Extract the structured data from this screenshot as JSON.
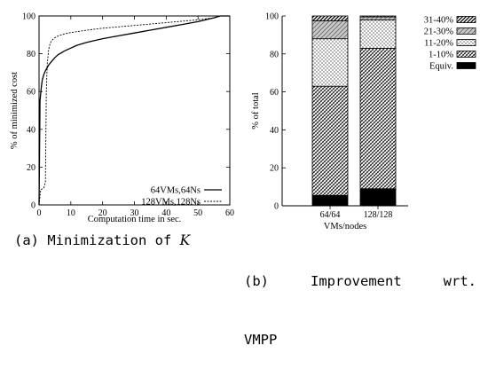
{
  "chart_data": [
    {
      "type": "line",
      "xlabel": "Computation time in sec.",
      "ylabel": "% of minimized cost",
      "xlim": [
        0,
        60
      ],
      "ylim": [
        0,
        100
      ],
      "xticks": [
        "0",
        "10",
        "20",
        "30",
        "40",
        "50",
        "60"
      ],
      "yticks": [
        "0",
        "20",
        "40",
        "60",
        "80",
        "100"
      ],
      "legend_position": "bottom-right",
      "series": [
        {
          "name": "64VMs,64Ns",
          "style": "solid",
          "x": [
            0,
            0.3,
            0.7,
            1,
            1.5,
            2,
            3,
            4,
            5,
            6,
            8,
            10,
            12,
            15,
            20,
            25,
            30,
            35,
            40,
            45,
            50,
            55,
            57,
            60
          ],
          "y": [
            0,
            55,
            62,
            66,
            69,
            71,
            74,
            76,
            78,
            79.5,
            81.5,
            83,
            84.5,
            86,
            88,
            89.5,
            91,
            92.5,
            94,
            95.5,
            97,
            99,
            100,
            100
          ]
        },
        {
          "name": "128VMs,128Ns",
          "style": "dashed",
          "x": [
            0,
            0.5,
            1,
            1.5,
            2,
            2.3,
            2.6,
            3,
            3.5,
            4,
            5,
            6,
            8,
            10,
            15,
            20,
            30,
            40,
            50,
            55,
            57,
            60
          ],
          "y": [
            0,
            8,
            8.5,
            9,
            12,
            60,
            75,
            82,
            85.5,
            87,
            88.5,
            89.5,
            90.5,
            91.2,
            92.5,
            93.5,
            95,
            96.5,
            98,
            99,
            100,
            100
          ]
        }
      ],
      "caption": "(a) Minimization of K"
    },
    {
      "type": "bar",
      "stacked": true,
      "xlabel": "VMs/nodes",
      "ylabel": "% of total",
      "ylim": [
        0,
        100
      ],
      "yticks": [
        "0",
        "20",
        "40",
        "60",
        "80",
        "100"
      ],
      "categories": [
        "64/64",
        "128/128"
      ],
      "legend_position": "top-right",
      "series": [
        {
          "name": "Equiv.",
          "values": [
            5.5,
            9
          ],
          "pattern": "solid-black"
        },
        {
          "name": "1-10%",
          "values": [
            57.5,
            74
          ],
          "pattern": "dense-hatch"
        },
        {
          "name": "11-20%",
          "values": [
            25,
            15
          ],
          "pattern": "sparse-dots"
        },
        {
          "name": "21-30%",
          "values": [
            9.5,
            1.5
          ],
          "pattern": "grey-hatch"
        },
        {
          "name": "31-40%",
          "values": [
            2.5,
            0.5
          ],
          "pattern": "diagonal-hatch"
        }
      ],
      "caption": "(b) Improvement wrt. VMPP"
    }
  ],
  "captions": {
    "a_prefix": "(a) Minimization of ",
    "a_symbol": "K",
    "b_line1_part1": "(b)",
    "b_line1_part2": "Improvement",
    "b_line1_part3": "wrt.",
    "b_line2": "VMPP"
  }
}
